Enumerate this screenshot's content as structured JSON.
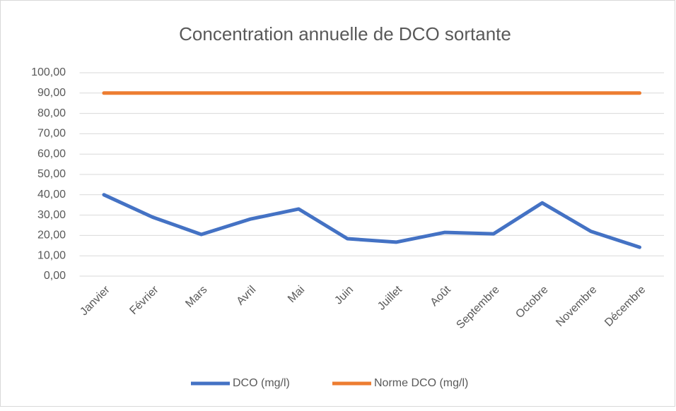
{
  "chart_data": {
    "type": "line",
    "title": "Concentration annuelle de DCO sortante",
    "categories": [
      "Janvier",
      "Février",
      "Mars",
      "Avril",
      "Mai",
      "Juin",
      "Juillet",
      "Août",
      "Septembre",
      "Octobre",
      "Novembre",
      "Décembre"
    ],
    "series": [
      {
        "name": "DCO (mg/l)",
        "color": "#4472c4",
        "values": [
          40,
          29,
          20.5,
          28,
          33,
          18.4,
          16.7,
          21.5,
          20.8,
          36,
          22,
          14.2
        ]
      },
      {
        "name": "Norme DCO (mg/l)",
        "color": "#ed7d31",
        "values": [
          90,
          90,
          90,
          90,
          90,
          90,
          90,
          90,
          90,
          90,
          90,
          90
        ]
      }
    ],
    "ylim": [
      0,
      100
    ],
    "yticks": [
      {
        "value": 0,
        "label": "0,00"
      },
      {
        "value": 10,
        "label": "10,00"
      },
      {
        "value": 20,
        "label": "20,00"
      },
      {
        "value": 30,
        "label": "30,00"
      },
      {
        "value": 40,
        "label": "40,00"
      },
      {
        "value": 50,
        "label": "50,00"
      },
      {
        "value": 60,
        "label": "60,00"
      },
      {
        "value": 70,
        "label": "70,00"
      },
      {
        "value": 80,
        "label": "80,00"
      },
      {
        "value": 90,
        "label": "90,00"
      },
      {
        "value": 100,
        "label": "100,00"
      }
    ],
    "grid": true,
    "legend": "bottom"
  }
}
